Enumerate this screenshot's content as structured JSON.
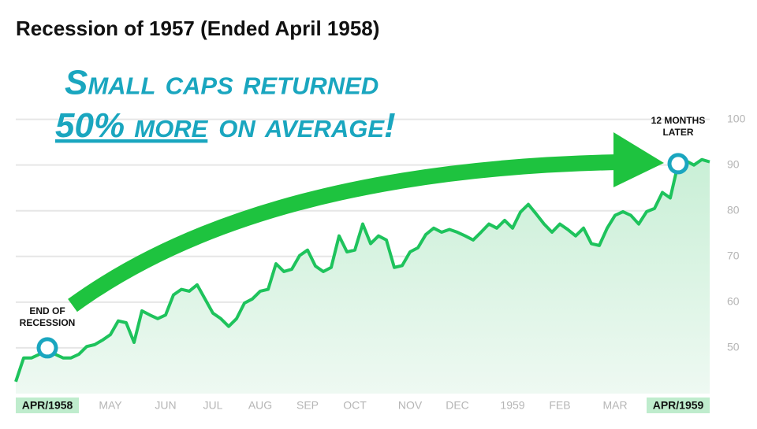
{
  "chart_data": {
    "type": "area_line",
    "title": "Recession of 1957 (Ended April 1958)",
    "headline": {
      "first_line": "Small caps returned",
      "underlined": "50% more",
      "rest": "on average!"
    },
    "annotations": [
      {
        "lines": [
          "END OF",
          "RECESSION"
        ],
        "index": 4
      },
      {
        "lines": [
          "12 MONTHS",
          "LATER"
        ],
        "index": 84
      }
    ],
    "categories": [
      null,
      null,
      null,
      null,
      "APR/1958",
      null,
      null,
      null,
      null,
      null,
      null,
      null,
      "MAY",
      null,
      null,
      null,
      null,
      null,
      null,
      "JUN",
      null,
      null,
      null,
      null,
      null,
      "JUL",
      null,
      null,
      null,
      null,
      null,
      "AUG",
      null,
      null,
      null,
      null,
      null,
      "SEP",
      null,
      null,
      null,
      null,
      null,
      "OCT",
      null,
      null,
      null,
      null,
      null,
      null,
      "NOV",
      null,
      null,
      null,
      null,
      null,
      "DEC",
      null,
      null,
      null,
      null,
      null,
      null,
      "1959",
      null,
      null,
      null,
      null,
      null,
      "FEB",
      null,
      null,
      null,
      null,
      null,
      null,
      "MAR",
      null,
      null,
      null,
      null,
      null,
      null,
      null,
      "APR/1959",
      null,
      null,
      null,
      null
    ],
    "values": [
      42.6,
      47.8,
      47.8,
      48.6,
      50,
      48.6,
      47.8,
      47.8,
      48.6,
      50.3,
      50.7,
      51.7,
      52.9,
      55.9,
      55.5,
      51.2,
      58.1,
      57.2,
      56.4,
      57.2,
      61.6,
      62.8,
      62.4,
      63.8,
      60.7,
      57.6,
      56.4,
      54.7,
      56.4,
      59.8,
      60.7,
      62.4,
      62.8,
      68.4,
      66.7,
      67.2,
      70.2,
      71.4,
      67.9,
      66.7,
      67.6,
      74.5,
      71.0,
      71.4,
      77.1,
      72.8,
      74.5,
      73.6,
      67.6,
      68.0,
      71.0,
      71.9,
      74.8,
      76.2,
      75.3,
      75.9,
      75.3,
      74.5,
      73.6,
      75.3,
      77.1,
      76.2,
      77.9,
      76.2,
      79.7,
      81.4,
      79.3,
      77.1,
      75.3,
      77.1,
      75.9,
      74.5,
      76.2,
      72.8,
      72.4,
      76.2,
      79.0,
      79.8,
      79.0,
      77.1,
      79.8,
      80.5,
      84.0,
      82.8,
      90.3,
      90.9,
      90.0,
      91.2,
      90.7
    ],
    "color": "#1ec35c",
    "fill_color": "#d9f4e2",
    "marker_color": "#1aa6bf",
    "highlight_color": "#bfeccd",
    "ylim": [
      40,
      102
    ],
    "yticks": [
      50,
      60,
      70,
      80,
      90,
      100
    ],
    "grid": true,
    "y_axis_side": "right"
  }
}
